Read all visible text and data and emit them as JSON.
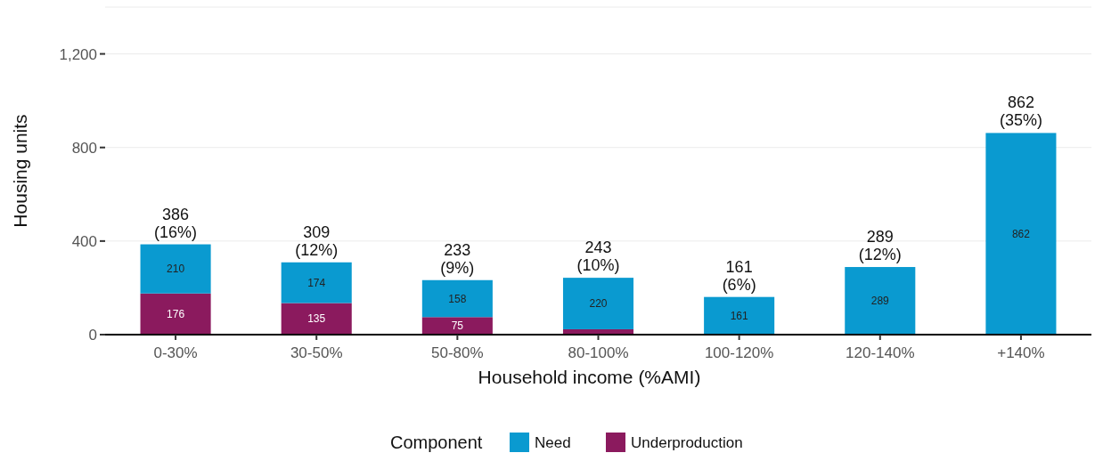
{
  "chart_data": {
    "type": "bar",
    "stacked": true,
    "xlabel": "Household income (%AMI)",
    "ylabel": "Housing units",
    "legend_title": "Component",
    "legend": "bottom",
    "grid": "y",
    "categories": [
      "0-30%",
      "30-50%",
      "50-80%",
      "80-100%",
      "100-120%",
      "120-140%",
      "+140%"
    ],
    "series": [
      {
        "name": "Underproduction",
        "color": "#8b1a5e",
        "values": [
          176,
          135,
          75,
          23,
          0,
          0,
          0
        ],
        "value_labels": [
          "176",
          "135",
          "75",
          null,
          null,
          null,
          null
        ]
      },
      {
        "name": "Need",
        "color": "#0a9ad0",
        "values": [
          210,
          174,
          158,
          220,
          161,
          289,
          862
        ],
        "value_labels": [
          "210",
          "174",
          "158",
          "220",
          "161",
          "289",
          "862"
        ]
      }
    ],
    "totals": [
      "386\n(16%)",
      "309\n(12%)",
      "233\n(9%)",
      "243\n(10%)",
      "161\n(6%)",
      "289\n(12%)",
      "862\n(35%)"
    ],
    "ylim": [
      0,
      1400
    ],
    "yticks": [
      0,
      {
        "value": 400,
        "label": "400"
      },
      {
        "value": 800,
        "label": "800"
      },
      {
        "value": 1200,
        "label": "1,200"
      },
      {
        "value": 1400,
        "label": null
      }
    ]
  }
}
